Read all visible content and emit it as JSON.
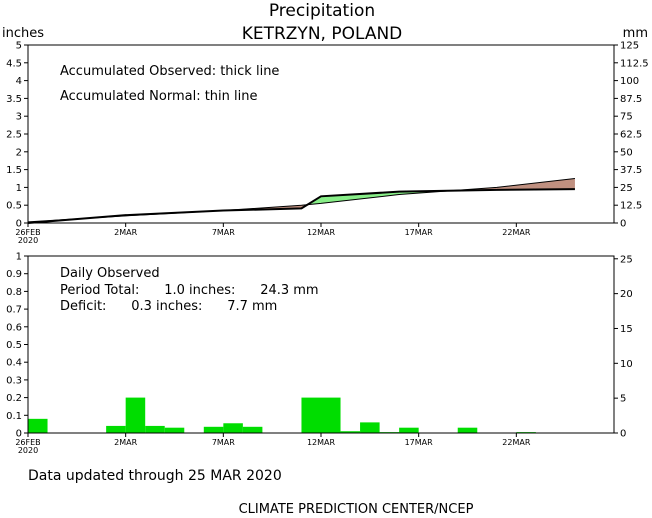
{
  "title": "Precipitation",
  "subtitle": "KETRZYN, POLAND",
  "footer_update": "Data updated through 25 MAR 2020",
  "footer_credit": "CLIMATE PREDICTION CENTER/NCEP",
  "colors": {
    "daily_bar": "#00dd00",
    "surplus_fill": "#88ee88",
    "deficit_fill": "#c09080",
    "line": "#000000"
  },
  "chart_data": [
    {
      "type": "area",
      "left_unit": "inches",
      "right_unit": "mm",
      "annotations": [
        "Accumulated Observed: thick line",
        "Accumulated Normal: thin line"
      ],
      "ylim": [
        0,
        5
      ],
      "yticks": [
        "0",
        "0.5",
        "1",
        "1.5",
        "2",
        "2.5",
        "3",
        "3.5",
        "4",
        "4.5",
        "5"
      ],
      "yticks_right": [
        "0",
        "12.5",
        "25",
        "37.5",
        "50",
        "62.5",
        "75",
        "87.5",
        "100",
        "112.5",
        "125"
      ],
      "x_day_range": [
        0,
        30
      ],
      "xticks": [
        {
          "label": "26FEB",
          "day": 0
        },
        {
          "label": "2MAR",
          "day": 5
        },
        {
          "label": "7MAR",
          "day": 10
        },
        {
          "label": "12MAR",
          "day": 15
        },
        {
          "label": "17MAR",
          "day": 20
        },
        {
          "label": "22MAR",
          "day": 25
        }
      ],
      "year_label": "2020",
      "series": [
        {
          "name": "Accumulated Observed",
          "x": [
            0,
            5,
            10,
            14,
            15,
            19,
            24,
            28
          ],
          "values": [
            0.0,
            0.22,
            0.35,
            0.41,
            0.75,
            0.88,
            0.93,
            0.95
          ]
        },
        {
          "name": "Accumulated Normal",
          "x": [
            0,
            5,
            10,
            14,
            15,
            19,
            24,
            28
          ],
          "values": [
            0.03,
            0.2,
            0.35,
            0.5,
            0.55,
            0.8,
            1.0,
            1.25
          ]
        }
      ]
    },
    {
      "type": "bar",
      "annotations": [
        "Daily Observed",
        "Period Total:      1.0 inches:      24.3 mm",
        "Deficit:      0.3 inches:      7.7 mm"
      ],
      "ylim": [
        0,
        1
      ],
      "yticks": [
        "0",
        "0.1",
        "0.2",
        "0.3",
        "0.4",
        "0.5",
        "0.6",
        "0.7",
        "0.8",
        "0.9",
        "1"
      ],
      "yticks_right": [
        "0",
        "5",
        "10",
        "15",
        "20",
        "25"
      ],
      "yticks_right_values_mm": [
        0,
        5,
        10,
        15,
        20,
        25
      ],
      "x_day_range": [
        0,
        30
      ],
      "xticks": [
        {
          "label": "26FEB",
          "day": 0
        },
        {
          "label": "2MAR",
          "day": 5
        },
        {
          "label": "7MAR",
          "day": 10
        },
        {
          "label": "12MAR",
          "day": 15
        },
        {
          "label": "17MAR",
          "day": 20
        },
        {
          "label": "22MAR",
          "day": 25
        }
      ],
      "year_label": "2020",
      "days": [
        0,
        4,
        5,
        6,
        7,
        9,
        10,
        11,
        14,
        15,
        16,
        17,
        18,
        19,
        22,
        25
      ],
      "values": [
        0.08,
        0.04,
        0.2,
        0.04,
        0.03,
        0.035,
        0.055,
        0.035,
        0.2,
        0.2,
        0.01,
        0.06,
        0.005,
        0.03,
        0.03,
        0.005
      ]
    }
  ]
}
